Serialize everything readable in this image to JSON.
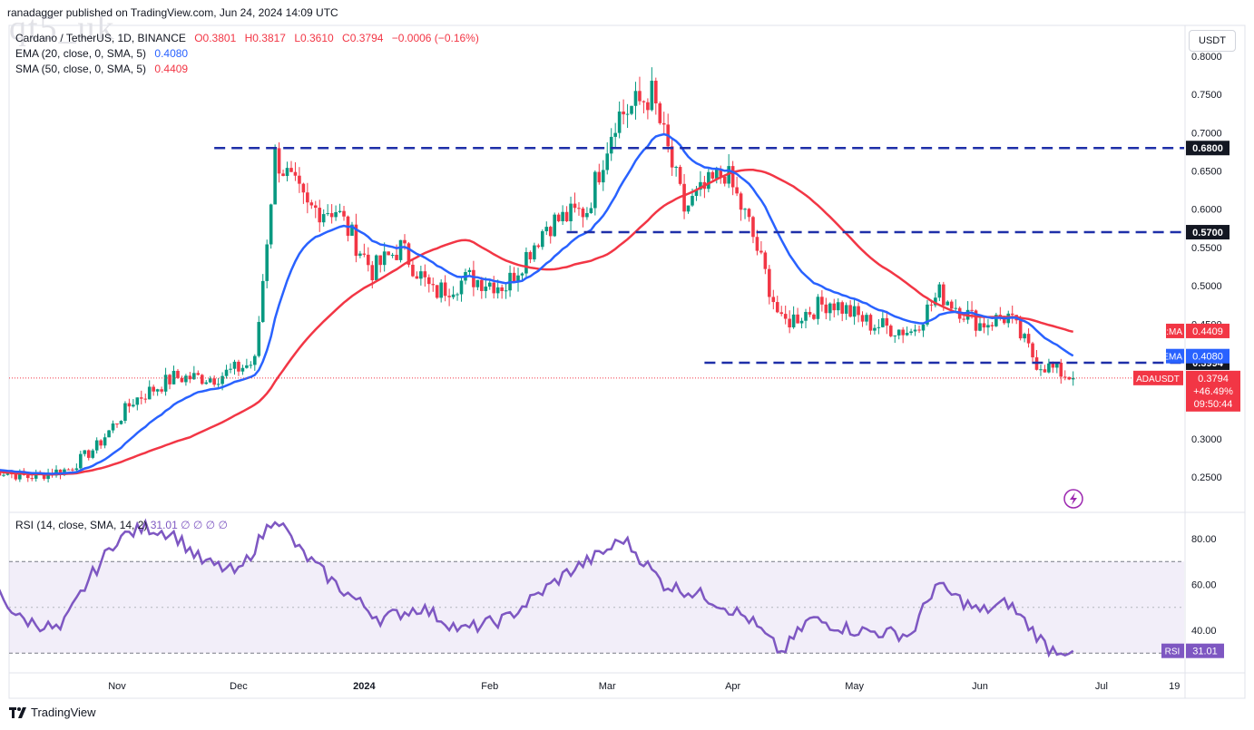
{
  "publish_line": "ranadagger published on TradingView.com, Jun 24, 2024 14:09 UTC",
  "watermark": "qt5_uk",
  "legend": {
    "symbol": "Cardano / TetherUS, 1D, BINANCE",
    "open": "O0.3801",
    "high": "H0.3817",
    "low": "L0.3610",
    "close": "C0.3794",
    "change": "−0.0006 (−0.16%)",
    "ema_label": "EMA (20, close, 0, SMA, 5)",
    "ema_value": "0.4080",
    "sma_label": "SMA (50, close, 0, SMA, 5)",
    "sma_value": "0.4409",
    "rsi_label": "RSI (14, close, SMA, 14, 2)",
    "rsi_value": "31.01",
    "rsi_extra": "∅ ∅ ∅ ∅"
  },
  "currency": "USDT",
  "branding": "TradingView",
  "colors": {
    "up": "#089981",
    "down": "#f23645",
    "ema": "#2962ff",
    "sma": "#f23645",
    "levels": "#1e2fa8",
    "rsi": "#7e57c2",
    "rsi_band": "rgba(126,87,194,0.10)"
  },
  "chart_data": [
    {
      "type": "candlestick",
      "title": "Cardano / TetherUS, 1D, BINANCE",
      "y_axis": {
        "ticks": [
          "0.8000",
          "0.7500",
          "0.7000",
          "0.6500",
          "0.6000",
          "0.5500",
          "0.5000",
          "0.4500",
          "0.3000",
          "0.2500"
        ],
        "ylim": [
          0.22,
          0.81
        ]
      },
      "x_axis": {
        "ticks": [
          "Nov",
          "Dec",
          "2024",
          "Feb",
          "Mar",
          "Apr",
          "May",
          "Jun",
          "Jul",
          "19"
        ]
      },
      "price_path": [
        [
          "2023-10-01",
          0.26
        ],
        [
          "2023-10-10",
          0.25
        ],
        [
          "2023-10-20",
          0.26
        ],
        [
          "2023-10-27",
          0.29
        ],
        [
          "2023-11-05",
          0.35
        ],
        [
          "2023-11-15",
          0.38
        ],
        [
          "2023-11-25",
          0.38
        ],
        [
          "2023-12-05",
          0.4
        ],
        [
          "2023-12-10",
          0.67
        ],
        [
          "2023-12-18",
          0.6
        ],
        [
          "2023-12-25",
          0.6
        ],
        [
          "2024-01-03",
          0.52
        ],
        [
          "2024-01-10",
          0.55
        ],
        [
          "2024-01-18",
          0.49
        ],
        [
          "2024-01-27",
          0.51
        ],
        [
          "2024-02-05",
          0.5
        ],
        [
          "2024-02-15",
          0.58
        ],
        [
          "2024-02-25",
          0.6
        ],
        [
          "2024-03-03",
          0.72
        ],
        [
          "2024-03-12",
          0.75
        ],
        [
          "2024-03-20",
          0.6
        ],
        [
          "2024-03-30",
          0.65
        ],
        [
          "2024-04-05",
          0.58
        ],
        [
          "2024-04-13",
          0.45
        ],
        [
          "2024-04-25",
          0.48
        ],
        [
          "2024-05-05",
          0.45
        ],
        [
          "2024-05-15",
          0.44
        ],
        [
          "2024-05-22",
          0.49
        ],
        [
          "2024-06-01",
          0.45
        ],
        [
          "2024-06-08",
          0.46
        ],
        [
          "2024-06-15",
          0.4
        ],
        [
          "2024-06-24",
          0.3794
        ]
      ],
      "overlays": [
        {
          "name": "EMA",
          "value_label": "0.4080"
        },
        {
          "name": "SMA:MA",
          "value_label": "0.4409"
        }
      ],
      "horizontal_levels": [
        {
          "value": 0.68,
          "label": "0.6800"
        },
        {
          "value": 0.57,
          "label": "0.5700"
        },
        {
          "value": 0.3994,
          "label": "0.3994"
        }
      ],
      "last_price": {
        "symbol": "ADAUSDT",
        "value": "0.3794",
        "change": "+46.49%",
        "countdown": "09:50:44"
      }
    },
    {
      "type": "line",
      "title": "RSI (14, close, SMA, 14, 2)",
      "y_axis": {
        "ticks": [
          "80.00",
          "60.00",
          "40.00"
        ],
        "ylim": [
          13,
          95
        ]
      },
      "band": [
        30,
        70
      ],
      "midline": 50,
      "rsi_path": [
        [
          "2023-10-01",
          60
        ],
        [
          "2023-10-08",
          45
        ],
        [
          "2023-10-18",
          40
        ],
        [
          "2023-10-25",
          62
        ],
        [
          "2023-11-01",
          80
        ],
        [
          "2023-11-08",
          85
        ],
        [
          "2023-11-15",
          82
        ],
        [
          "2023-11-22",
          70
        ],
        [
          "2023-12-01",
          65
        ],
        [
          "2023-12-10",
          90
        ],
        [
          "2023-12-16",
          75
        ],
        [
          "2023-12-25",
          60
        ],
        [
          "2024-01-05",
          45
        ],
        [
          "2024-01-15",
          50
        ],
        [
          "2024-01-25",
          40
        ],
        [
          "2024-02-05",
          45
        ],
        [
          "2024-02-20",
          65
        ],
        [
          "2024-03-01",
          75
        ],
        [
          "2024-03-05",
          80
        ],
        [
          "2024-03-15",
          60
        ],
        [
          "2024-03-25",
          55
        ],
        [
          "2024-04-05",
          45
        ],
        [
          "2024-04-13",
          30
        ],
        [
          "2024-04-20",
          45
        ],
        [
          "2024-05-01",
          40
        ],
        [
          "2024-05-15",
          38
        ],
        [
          "2024-05-21",
          60
        ],
        [
          "2024-06-01",
          48
        ],
        [
          "2024-06-08",
          52
        ],
        [
          "2024-06-18",
          32
        ],
        [
          "2024-06-24",
          31.01
        ]
      ],
      "last_value": {
        "name": "RSI",
        "value": "31.01"
      }
    }
  ]
}
